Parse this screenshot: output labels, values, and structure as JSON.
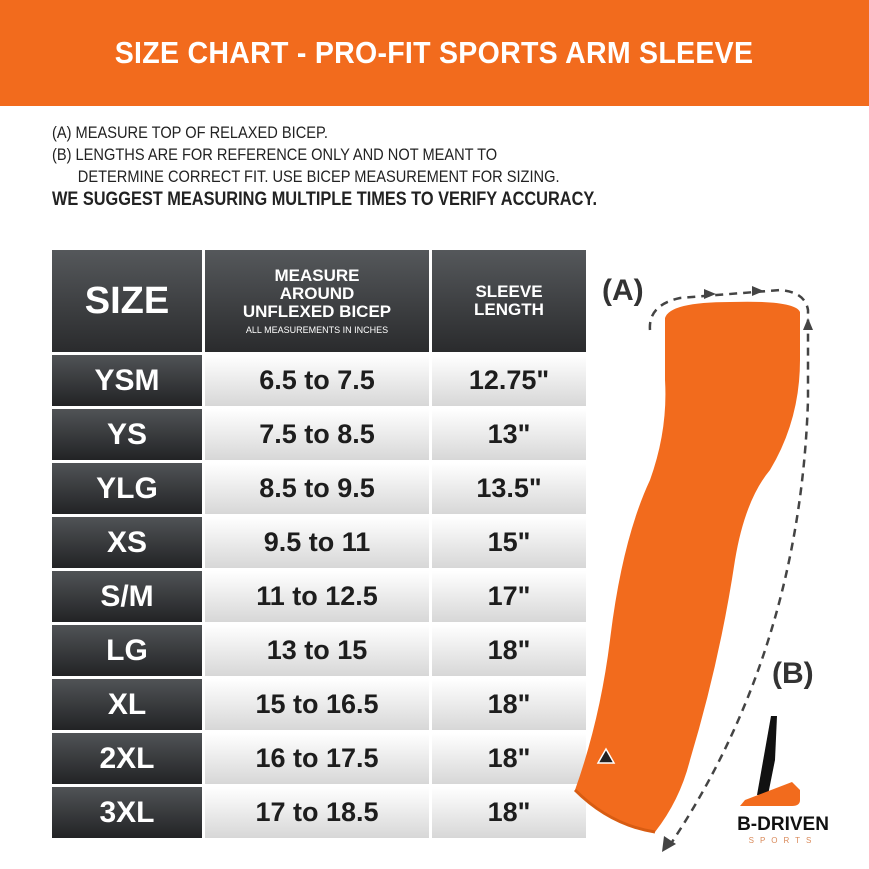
{
  "header": {
    "title": "SIZE CHART - PRO-FIT SPORTS ARM SLEEVE"
  },
  "notes": {
    "a": "(A) MEASURE TOP OF RELAXED BICEP.",
    "b1": "(B) LENGTHS ARE FOR REFERENCE ONLY AND NOT MEANT TO",
    "b2": "DETERMINE CORRECT FIT. USE BICEP MEASUREMENT FOR SIZING.",
    "suggest": "WE SUGGEST MEASURING MULTIPLE TIMES TO VERIFY ACCURACY."
  },
  "table": {
    "headers": {
      "size": "SIZE",
      "bicep_l1": "MEASURE",
      "bicep_l2": "AROUND",
      "bicep_l3": "UNFLEXED BICEP",
      "bicep_note": "ALL MEASUREMENTS IN INCHES",
      "sleeve_l1": "SLEEVE",
      "sleeve_l2": "LENGTH"
    },
    "rows": [
      {
        "size": "YSM",
        "bicep": "6.5 to 7.5",
        "length": "12.75\""
      },
      {
        "size": "YS",
        "bicep": "7.5 to 8.5",
        "length": "13\""
      },
      {
        "size": "YLG",
        "bicep": "8.5 to 9.5",
        "length": "13.5\""
      },
      {
        "size": "XS",
        "bicep": "9.5 to 11",
        "length": "15\""
      },
      {
        "size": "S/M",
        "bicep": "11 to 12.5",
        "length": "17\""
      },
      {
        "size": "LG",
        "bicep": "13 to 15",
        "length": "18\""
      },
      {
        "size": "XL",
        "bicep": "15 to 16.5",
        "length": "18\""
      },
      {
        "size": "2XL",
        "bicep": "16 to 17.5",
        "length": "18\""
      },
      {
        "size": "3XL",
        "bicep": "17 to 18.5",
        "length": "18\""
      }
    ]
  },
  "illustration": {
    "label_a": "(A)",
    "label_b": "(B)",
    "sleeve_color": "#f26b1d"
  },
  "logo": {
    "brand": "B-DRIVEN",
    "sub": "SPORTS"
  },
  "colors": {
    "accent": "#f26b1d",
    "header_dark": "#2a2b2d"
  }
}
